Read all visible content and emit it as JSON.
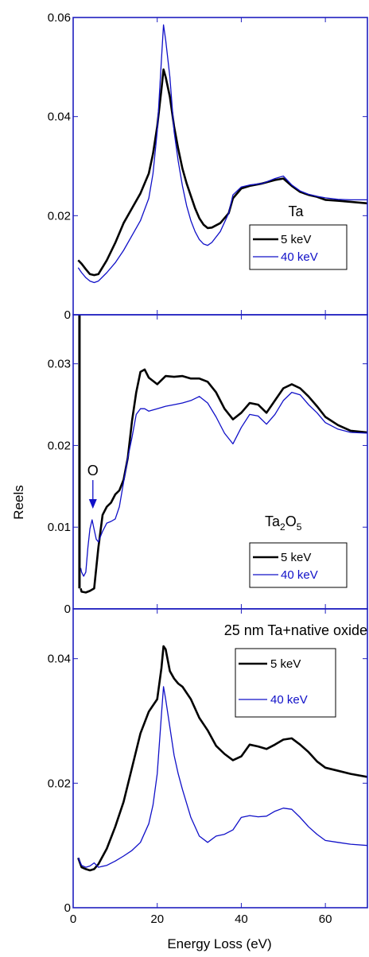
{
  "figure": {
    "ylabel": "Reels",
    "xlabel": "Energy Loss (eV)",
    "colors": {
      "5 keV": "#000000",
      "40 keV": "#1010c8",
      "axis": "#2020c0"
    }
  },
  "chart_data": [
    {
      "type": "line",
      "title": "Ta",
      "xlim": [
        0,
        70
      ],
      "ylim": [
        0,
        0.06
      ],
      "yticks": [
        0,
        0.02,
        0.04,
        0.06
      ],
      "ytick_labels": [
        "0",
        "0.02",
        "0.04",
        "0.06"
      ],
      "xticks": [
        0,
        20,
        40,
        60
      ],
      "legend": "bottom-right",
      "series": [
        {
          "name": "5 keV",
          "color": "#000000",
          "x": [
            1.2,
            2,
            3,
            4,
            5,
            6,
            8,
            10,
            12,
            14,
            16,
            18,
            19,
            20,
            21,
            21.5,
            22,
            23,
            24,
            25,
            26,
            27,
            28,
            29,
            30,
            31,
            32,
            33,
            35,
            37,
            38,
            40,
            42,
            45,
            48,
            50,
            52,
            54,
            56,
            58,
            60,
            63,
            66,
            70
          ],
          "y": [
            0.011,
            0.0103,
            0.0092,
            0.0082,
            0.008,
            0.0082,
            0.011,
            0.0145,
            0.0185,
            0.0215,
            0.0245,
            0.0285,
            0.0325,
            0.038,
            0.0455,
            0.0495,
            0.048,
            0.044,
            0.038,
            0.0335,
            0.0295,
            0.0265,
            0.024,
            0.0215,
            0.0195,
            0.0182,
            0.0175,
            0.0176,
            0.0185,
            0.0205,
            0.0235,
            0.0255,
            0.026,
            0.0265,
            0.0272,
            0.0275,
            0.026,
            0.0248,
            0.0242,
            0.0238,
            0.0232,
            0.023,
            0.0228,
            0.0225
          ]
        },
        {
          "name": "40 keV",
          "color": "#1010c8",
          "x": [
            1.2,
            2,
            3,
            4,
            5,
            6,
            8,
            10,
            12,
            14,
            16,
            18,
            19,
            20,
            21,
            21.5,
            22,
            23,
            24,
            25,
            26,
            27,
            28,
            29,
            30,
            31,
            32,
            33,
            35,
            37,
            38,
            40,
            42,
            45,
            48,
            50,
            52,
            54,
            56,
            58,
            60,
            63,
            66,
            70
          ],
          "y": [
            0.0095,
            0.0085,
            0.0075,
            0.0068,
            0.0065,
            0.0068,
            0.0085,
            0.0105,
            0.013,
            0.016,
            0.019,
            0.0235,
            0.0285,
            0.037,
            0.0515,
            0.0585,
            0.0555,
            0.048,
            0.037,
            0.031,
            0.026,
            0.022,
            0.019,
            0.0168,
            0.0152,
            0.0143,
            0.014,
            0.0146,
            0.0168,
            0.0205,
            0.0242,
            0.0258,
            0.0262,
            0.0265,
            0.0275,
            0.028,
            0.0262,
            0.025,
            0.0243,
            0.0239,
            0.0236,
            0.0233,
            0.0232,
            0.0232
          ]
        }
      ]
    },
    {
      "type": "line",
      "title": "",
      "title_parts": [
        "Ta",
        "2",
        "O",
        "5"
      ],
      "annotation": "O",
      "annotation_x": 4.5,
      "annotation_y": 0.0117,
      "xlim": [
        0,
        70
      ],
      "ylim": [
        0,
        0.036
      ],
      "yticks": [
        0,
        0.01,
        0.02,
        0.03
      ],
      "ytick_labels": [
        "0",
        "0.01",
        "0.02",
        "0.03"
      ],
      "xticks": [
        0,
        20,
        40,
        60
      ],
      "legend": "bottom-right",
      "series": [
        {
          "name": "5 keV",
          "color": "#000000",
          "x": [
            1.8,
            2,
            3,
            4,
            5,
            6,
            7,
            8,
            9,
            10,
            11,
            12,
            13,
            14,
            15,
            16,
            17,
            18,
            20,
            22,
            24,
            26,
            28,
            30,
            32,
            34,
            36,
            38,
            40,
            42,
            44,
            46,
            48,
            50,
            52,
            54,
            56,
            58,
            60,
            63,
            66,
            70
          ],
          "y": [
            0.0025,
            0.0021,
            0.002,
            0.0022,
            0.0025,
            0.0075,
            0.0115,
            0.0125,
            0.013,
            0.014,
            0.0145,
            0.0158,
            0.0185,
            0.023,
            0.0265,
            0.029,
            0.0293,
            0.0283,
            0.0275,
            0.0285,
            0.0284,
            0.0285,
            0.0282,
            0.0282,
            0.0278,
            0.0265,
            0.0245,
            0.0232,
            0.024,
            0.0252,
            0.025,
            0.024,
            0.0255,
            0.027,
            0.0275,
            0.027,
            0.026,
            0.0248,
            0.0235,
            0.0225,
            0.0218,
            0.0216
          ]
        },
        {
          "name": "40 keV",
          "color": "#1010c8",
          "x": [
            1.8,
            2,
            2.5,
            3,
            3.5,
            4,
            4.5,
            5,
            5.5,
            6,
            7,
            8,
            9,
            10,
            11,
            12,
            13,
            14,
            15,
            16,
            17,
            18,
            20,
            22,
            24,
            26,
            28,
            30,
            32,
            34,
            36,
            38,
            40,
            42,
            44,
            46,
            48,
            50,
            52,
            54,
            56,
            58,
            60,
            63,
            66,
            70
          ],
          "y": [
            0.005,
            0.0045,
            0.004,
            0.0045,
            0.0075,
            0.0098,
            0.0109,
            0.0097,
            0.0085,
            0.0082,
            0.0095,
            0.0105,
            0.0107,
            0.011,
            0.0125,
            0.0155,
            0.0185,
            0.021,
            0.0238,
            0.0245,
            0.0245,
            0.0242,
            0.0245,
            0.0248,
            0.025,
            0.0252,
            0.0255,
            0.026,
            0.0252,
            0.0235,
            0.0215,
            0.0202,
            0.0222,
            0.0238,
            0.0236,
            0.0226,
            0.0238,
            0.0255,
            0.0265,
            0.0262,
            0.025,
            0.024,
            0.0228,
            0.022,
            0.0216,
            0.0215
          ]
        }
      ]
    },
    {
      "type": "line",
      "title": "25 nm Ta+native oxide",
      "xlim": [
        0,
        70
      ],
      "ylim": [
        0,
        0.048
      ],
      "yticks": [
        0,
        0.02,
        0.04
      ],
      "ytick_labels": [
        "0",
        "0.02",
        "0.04"
      ],
      "xticks": [
        0,
        20,
        40,
        60
      ],
      "xtick_labels": [
        "0",
        "20",
        "40",
        "60"
      ],
      "legend": "top-right",
      "series": [
        {
          "name": "5 keV",
          "color": "#000000",
          "x": [
            1.2,
            2,
            3,
            4,
            5,
            6,
            8,
            10,
            12,
            14,
            16,
            18,
            20,
            21,
            21.5,
            22,
            23,
            24,
            25,
            26,
            28,
            30,
            32,
            34,
            36,
            38,
            40,
            42,
            44,
            46,
            48,
            50,
            52,
            54,
            56,
            58,
            60,
            63,
            66,
            70
          ],
          "y": [
            0.008,
            0.0065,
            0.0062,
            0.006,
            0.0062,
            0.007,
            0.0095,
            0.013,
            0.017,
            0.0225,
            0.028,
            0.0315,
            0.0335,
            0.0385,
            0.042,
            0.0415,
            0.038,
            0.0368,
            0.036,
            0.0355,
            0.0335,
            0.0305,
            0.0285,
            0.026,
            0.0247,
            0.0237,
            0.0243,
            0.0262,
            0.0259,
            0.0255,
            0.0262,
            0.027,
            0.0272,
            0.0262,
            0.025,
            0.0235,
            0.0225,
            0.022,
            0.0215,
            0.021
          ]
        },
        {
          "name": "40 keV",
          "color": "#1010c8",
          "x": [
            1.2,
            2,
            3,
            4,
            5,
            6,
            8,
            10,
            12,
            14,
            16,
            18,
            19,
            20,
            21,
            21.5,
            22,
            23,
            24,
            25,
            26,
            28,
            30,
            32,
            34,
            36,
            38,
            40,
            42,
            44,
            46,
            48,
            50,
            52,
            54,
            56,
            58,
            60,
            63,
            66,
            70
          ],
          "y": [
            0.008,
            0.0068,
            0.0065,
            0.0067,
            0.0072,
            0.0065,
            0.0068,
            0.0075,
            0.0083,
            0.0092,
            0.0105,
            0.0135,
            0.0165,
            0.0215,
            0.031,
            0.0355,
            0.0335,
            0.029,
            0.0245,
            0.0215,
            0.019,
            0.0145,
            0.0115,
            0.0105,
            0.0115,
            0.0118,
            0.0125,
            0.0145,
            0.0148,
            0.0146,
            0.0147,
            0.0155,
            0.016,
            0.0158,
            0.0145,
            0.013,
            0.0118,
            0.0108,
            0.0105,
            0.0102,
            0.01
          ]
        }
      ]
    }
  ]
}
